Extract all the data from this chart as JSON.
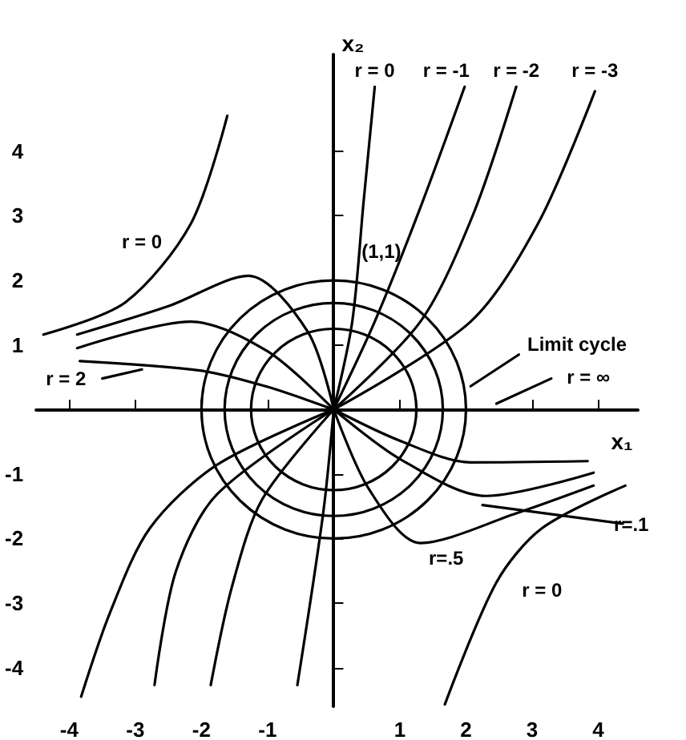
{
  "chart_data": {
    "type": "line",
    "xlabel": "x₁",
    "ylabel": "x₂",
    "xlim": [
      -4.5,
      4.6
    ],
    "ylim": [
      -4.6,
      5.5
    ],
    "xticks": [
      -4,
      -3,
      -2,
      -1,
      1,
      2,
      3,
      4
    ],
    "yticks": [
      -4,
      -3,
      -2,
      -1,
      1,
      2,
      3,
      4
    ],
    "grid": false,
    "marker": "none",
    "line_style": "solid",
    "series": [
      {
        "color": "#000000",
        "x": [
          0,
          0.28,
          0.45,
          0.62
        ],
        "values": [
          0,
          1.36,
          3.2,
          5.0
        ]
      },
      {
        "color": "#000000",
        "x": [
          0,
          0.62,
          1.3,
          1.98
        ],
        "values": [
          0,
          1.36,
          3.1,
          5.0
        ]
      },
      {
        "color": "#000000",
        "x": [
          0,
          1.31,
          2.1,
          2.76
        ],
        "values": [
          0,
          1.36,
          3.0,
          5.0
        ]
      },
      {
        "color": "#000000",
        "x": [
          0,
          2.07,
          3.1,
          3.95
        ],
        "values": [
          0,
          1.36,
          2.9,
          4.93
        ]
      },
      {
        "color": "#000000",
        "x": [
          -4.39,
          -3.15,
          -2.16,
          -1.61
        ],
        "values": [
          1.16,
          1.66,
          2.88,
          4.55
        ]
      },
      {
        "color": "#000000",
        "x": [
          -3.88,
          -2.5,
          -1.29,
          -0.39,
          0
        ],
        "values": [
          1.16,
          1.6,
          2.07,
          1.2,
          0
        ]
      },
      {
        "color": "#000000",
        "x": [
          -3.88,
          -2.16,
          -1.0,
          0
        ],
        "values": [
          0.95,
          1.36,
          0.9,
          0
        ]
      },
      {
        "color": "#000000",
        "x": [
          -3.84,
          -2,
          -1,
          0
        ],
        "values": [
          0.75,
          0.6,
          0.35,
          0
        ]
      },
      {
        "color": "#000000",
        "x": [
          0,
          -1.77,
          -2.78,
          -3.38,
          -3.82
        ],
        "values": [
          0,
          -0.86,
          -1.84,
          -3.14,
          -4.45
        ]
      },
      {
        "color": "#000000",
        "x": [
          0,
          -1.77,
          -2.39,
          -2.71
        ],
        "values": [
          0,
          -1.32,
          -2.52,
          -4.27
        ]
      },
      {
        "color": "#000000",
        "x": [
          0,
          -1.08,
          -1.54,
          -1.86
        ],
        "values": [
          0,
          -1.39,
          -2.75,
          -4.27
        ]
      },
      {
        "color": "#000000",
        "x": [
          0,
          -0.16,
          -0.55
        ],
        "values": [
          0,
          -1.61,
          -4.27
        ]
      },
      {
        "color": "#000000",
        "x": [
          0,
          0.99,
          2.07,
          3.84
        ],
        "values": [
          0,
          -0.48,
          -0.82,
          -0.8
        ]
      },
      {
        "color": "#000000",
        "x": [
          0,
          0.99,
          2.3,
          3.93
        ],
        "values": [
          0,
          -0.76,
          -1.34,
          -0.98
        ]
      },
      {
        "color": "#000000",
        "x": [
          0,
          0.53,
          1.31,
          2.76,
          3.93
        ],
        "values": [
          0,
          -1.23,
          -2.07,
          -1.61,
          -1.18
        ]
      },
      {
        "color": "#000000",
        "x": [
          1.68,
          2.46,
          3.15,
          4.41
        ],
        "values": [
          -4.57,
          -2.68,
          -1.84,
          -1.18
        ]
      },
      {
        "color": "#000000",
        "x": [
          2.25,
          4.37
        ],
        "values": [
          -1.48,
          -1.77
        ]
      },
      {
        "color": "#000000",
        "x": [
          2.07,
          2.8
        ],
        "values": [
          0.36,
          0.85
        ]
      },
      {
        "color": "#000000",
        "x": [
          2.46,
          3.29
        ],
        "values": [
          0.09,
          0.48
        ]
      },
      {
        "color": "#000000",
        "x": [
          -3.5,
          -2.9
        ],
        "values": [
          0.48,
          0.62
        ]
      }
    ],
    "annotations": [
      {
        "text": "r = 0",
        "x": -2.9,
        "y": 2.6
      },
      {
        "text": "r = 0",
        "x": 0.62,
        "y": 5.25
      },
      {
        "text": "r = -1",
        "x": 1.7,
        "y": 5.25
      },
      {
        "text": "r = -2",
        "x": 2.76,
        "y": 5.25
      },
      {
        "text": "r = -3",
        "x": 3.95,
        "y": 5.25
      },
      {
        "text": "(1,1)",
        "x": 0.72,
        "y": 2.45
      },
      "Limit cycle",
      {
        "text": "r = ∞",
        "x": 3.85,
        "y": 0.5
      },
      {
        "text": "r = 2",
        "x": -4.05,
        "y": 0.48
      },
      {
        "text": "r=.1",
        "x": 4.5,
        "y": -1.78
      },
      {
        "text": "r=.5",
        "x": 1.7,
        "y": -2.3
      },
      {
        "text": "r = 0",
        "x": 3.15,
        "y": -2.8
      }
    ]
  }
}
